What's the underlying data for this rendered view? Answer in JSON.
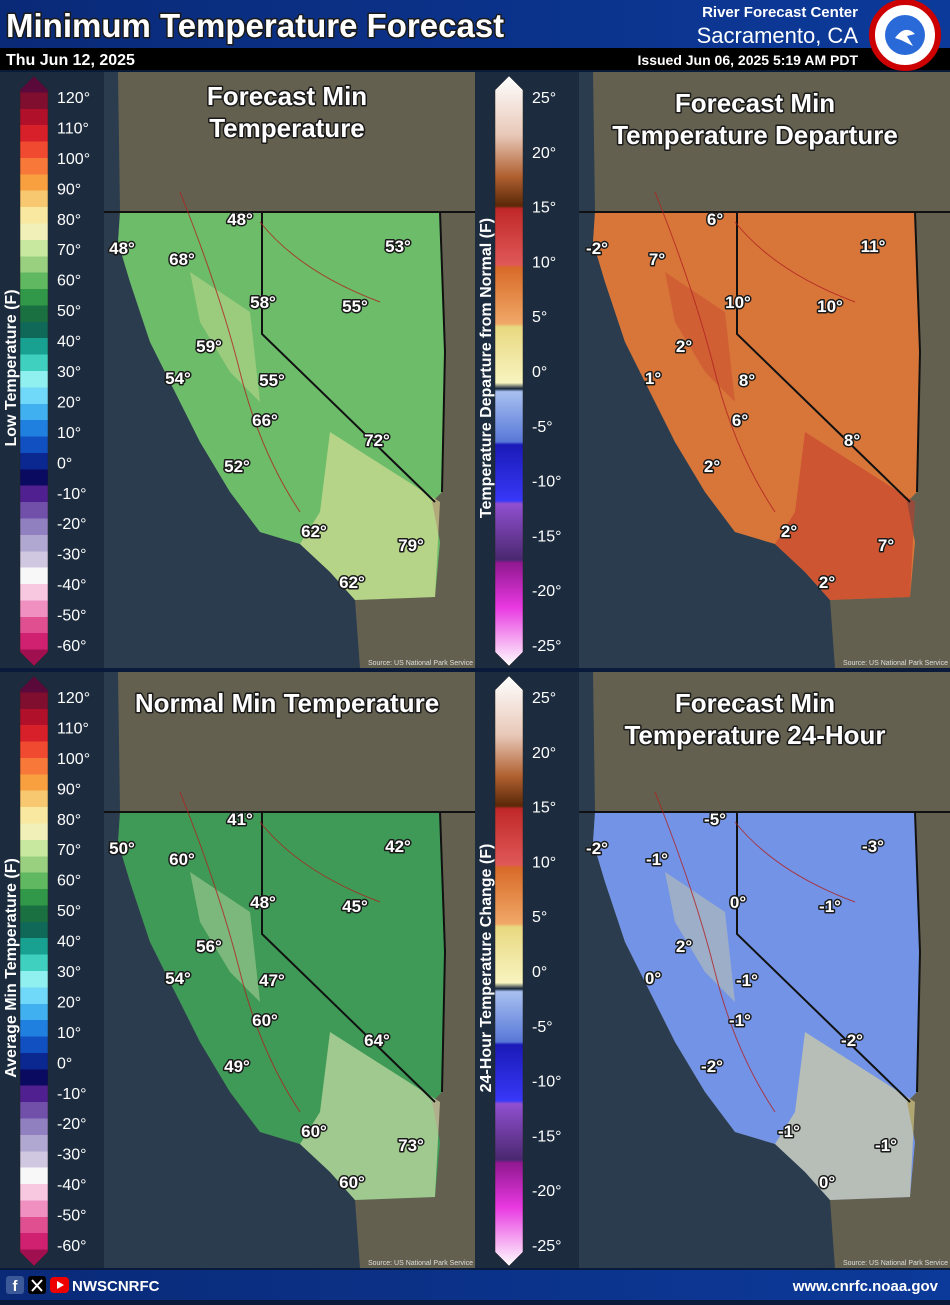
{
  "header": {
    "title": "Minimum Temperature Forecast",
    "date": "Thu Jun 12, 2025",
    "office": "River Forecast Center",
    "location": "Sacramento, CA",
    "issued": "Issued Jun 06, 2025 5:19 AM PDT"
  },
  "panels": [
    {
      "title_lines": [
        "Forecast Min",
        "Temperature"
      ],
      "legend_label": "Low Temperature (F)",
      "legend_ticks": [
        "120°",
        "110°",
        "100°",
        "90°",
        "80°",
        "70°",
        "60°",
        "50°",
        "40°",
        "30°",
        "20°",
        "10°",
        "0°",
        "-10°",
        "-20°",
        "-30°",
        "-40°",
        "-50°",
        "-60°"
      ],
      "map_labels": [
        "48°",
        "48°",
        "53°",
        "68°",
        "58°",
        "55°",
        "59°",
        "54°",
        "55°",
        "66°",
        "72°",
        "52°",
        "62°",
        "79°",
        "62°"
      ],
      "source": "Source: US National Park Service"
    },
    {
      "title_lines": [
        "Forecast Min",
        "Temperature Departure"
      ],
      "legend_label": "Temperature Departure from Normal (F)",
      "legend_ticks": [
        "25°",
        "20°",
        "15°",
        "10°",
        "5°",
        "0°",
        "-5°",
        "-10°",
        "-15°",
        "-20°",
        "-25°"
      ],
      "map_labels": [
        "-2°",
        "6°",
        "11°",
        "7°",
        "10°",
        "10°",
        "2°",
        "1°",
        "8°",
        "6°",
        "8°",
        "2°",
        "2°",
        "7°",
        "2°"
      ],
      "source": "Source: US National Park Service"
    },
    {
      "title_lines": [
        "Normal Min Temperature"
      ],
      "legend_label": "Average Min Temperature (F)",
      "legend_ticks": [
        "120°",
        "110°",
        "100°",
        "90°",
        "80°",
        "70°",
        "60°",
        "50°",
        "40°",
        "30°",
        "20°",
        "10°",
        "0°",
        "-10°",
        "-20°",
        "-30°",
        "-40°",
        "-50°",
        "-60°"
      ],
      "map_labels": [
        "50°",
        "41°",
        "42°",
        "60°",
        "48°",
        "45°",
        "56°",
        "54°",
        "47°",
        "60°",
        "64°",
        "49°",
        "60°",
        "73°",
        "60°"
      ],
      "source": "Source: US National Park Service"
    },
    {
      "title_lines": [
        "Forecast Min",
        "Temperature 24-Hour"
      ],
      "legend_label": "24-Hour Temperature Change (F)",
      "legend_ticks": [
        "25°",
        "20°",
        "15°",
        "10°",
        "5°",
        "0°",
        "-5°",
        "-10°",
        "-15°",
        "-20°",
        "-25°"
      ],
      "map_labels": [
        "-2°",
        "-5°",
        "-3°",
        "-1°",
        "0°",
        "-1°",
        "2°",
        "0°",
        "-1°",
        "-1°",
        "-2°",
        "-2°",
        "-1°",
        "-1°",
        "0°"
      ],
      "source": "Source: US National Park Service"
    }
  ],
  "footer": {
    "handle": "NWSCNRFC",
    "website": "www.cnrfc.noaa.gov"
  }
}
